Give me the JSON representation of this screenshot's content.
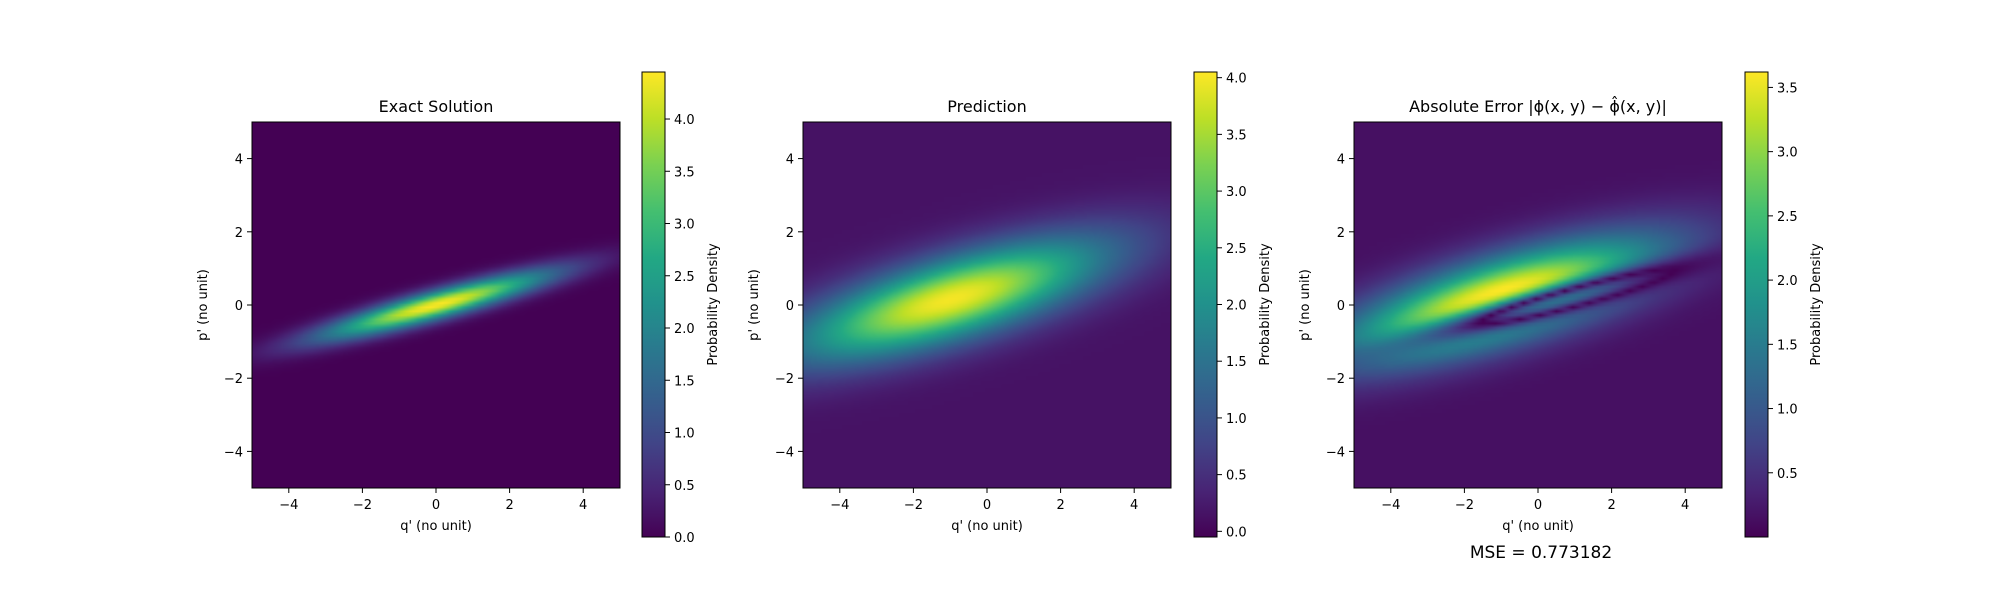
{
  "figure": {
    "mse_label": "MSE = 0.773182"
  },
  "chart_data": [
    {
      "type": "heatmap",
      "title": "Exact Solution",
      "xlabel": "q' (no unit)",
      "ylabel": "p' (no unit)",
      "xlim": [
        -5,
        5
      ],
      "ylim": [
        -5,
        5
      ],
      "xticks": [
        -4,
        -2,
        0,
        2,
        4
      ],
      "yticks": [
        -4,
        -2,
        0,
        2,
        4
      ],
      "colormap": "viridis",
      "colorbar": {
        "label": "Probability Density",
        "range": [
          0.0,
          4.45
        ],
        "ticks": [
          0.0,
          0.5,
          1.0,
          1.5,
          2.0,
          2.5,
          3.0,
          3.5,
          4.0
        ]
      },
      "field": {
        "peak": 4.45,
        "center": [
          0.0,
          0.0
        ],
        "major_axis_slope": 0.27,
        "sigma_along": 2.2,
        "sigma_across": 0.26,
        "floor": 0.0
      }
    },
    {
      "type": "heatmap",
      "title": "Prediction",
      "xlabel": "q' (no unit)",
      "ylabel": "p' (no unit)",
      "xlim": [
        -5,
        5
      ],
      "ylim": [
        -5,
        5
      ],
      "xticks": [
        -4,
        -2,
        0,
        2,
        4
      ],
      "yticks": [
        -4,
        -2,
        0,
        2,
        4
      ],
      "colormap": "viridis",
      "colorbar": {
        "label": "Probability Density",
        "range": [
          -0.05,
          4.05
        ],
        "ticks": [
          0.0,
          0.5,
          1.0,
          1.5,
          2.0,
          2.5,
          3.0,
          3.5,
          4.0
        ]
      },
      "field": {
        "peak": 4.0,
        "center": [
          -1.0,
          0.15
        ],
        "major_axis_slope": 0.3,
        "sigma_along": 3.0,
        "sigma_across": 0.75,
        "floor": 0.15
      }
    },
    {
      "type": "heatmap",
      "title": "Absolute Error |ϕ(x, y) − ϕ̂(x, y)|",
      "xlabel": "q' (no unit)",
      "ylabel": "p' (no unit)",
      "xlim": [
        -5,
        5
      ],
      "ylim": [
        -5,
        5
      ],
      "xticks": [
        -4,
        -2,
        0,
        2,
        4
      ],
      "yticks": [
        -4,
        -2,
        0,
        2,
        4
      ],
      "colormap": "viridis",
      "colorbar": {
        "label": "Probability Density",
        "range": [
          0.0,
          3.62
        ],
        "ticks": [
          0.5,
          1.0,
          1.5,
          2.0,
          2.5,
          3.0,
          3.5
        ]
      },
      "field": {
        "derived": "abs_difference_of_panels_1_and_2"
      },
      "annotation": "MSE = 0.773182"
    }
  ]
}
